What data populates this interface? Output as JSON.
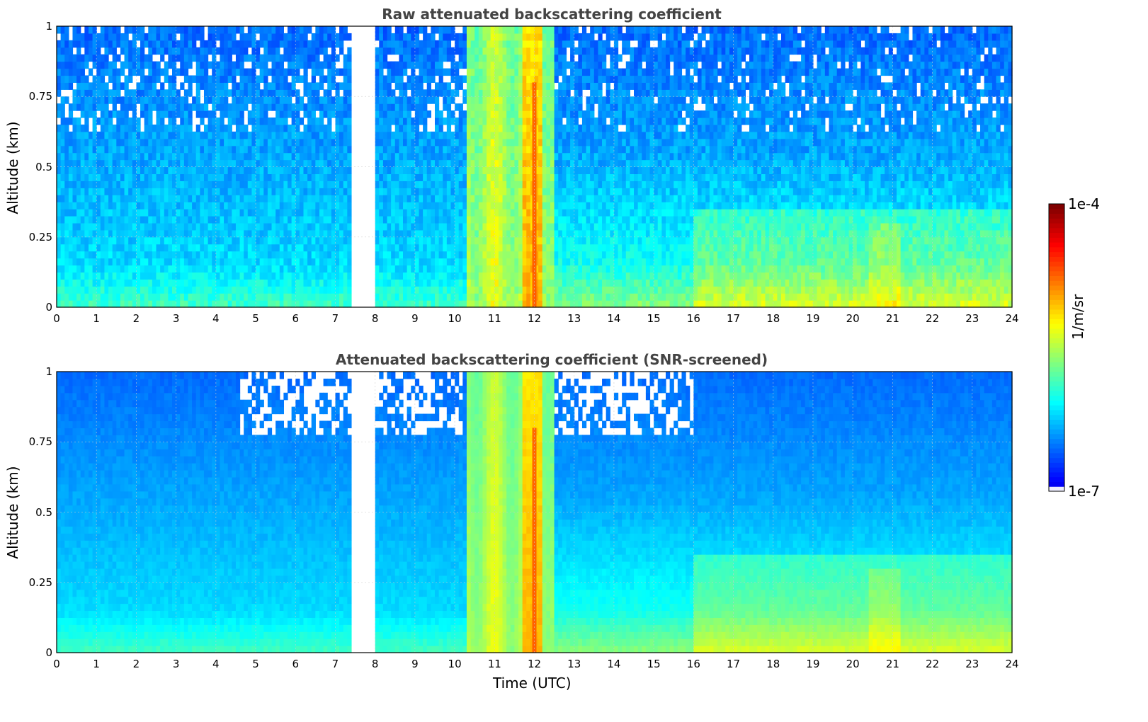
{
  "chart_data": [
    {
      "type": "heatmap",
      "title": "Raw attenuated backscattering coefficient",
      "xlabel": "",
      "ylabel": "Altitude (km)",
      "xlim": [
        0,
        24
      ],
      "ylim": [
        0,
        1
      ],
      "x_ticks": [
        "0",
        "1",
        "2",
        "3",
        "4",
        "5",
        "6",
        "7",
        "8",
        "9",
        "10",
        "11",
        "12",
        "13",
        "14",
        "15",
        "16",
        "17",
        "18",
        "19",
        "20",
        "21",
        "22",
        "23",
        "24"
      ],
      "y_ticks": [
        "0",
        "0.25",
        "0.5",
        "0.75",
        "1"
      ],
      "grid": true,
      "data_gap_hours": [
        7.4,
        8.0
      ],
      "high_signal_band_hours": [
        10.3,
        12.5
      ],
      "peak_hour": 12.0,
      "snr_screened": false
    },
    {
      "type": "heatmap",
      "title": "Attenuated backscattering coefficient (SNR-screened)",
      "xlabel": "Time (UTC)",
      "ylabel": "Altitude (km)",
      "xlim": [
        0,
        24
      ],
      "ylim": [
        0,
        1
      ],
      "x_ticks": [
        "0",
        "1",
        "2",
        "3",
        "4",
        "5",
        "6",
        "7",
        "8",
        "9",
        "10",
        "11",
        "12",
        "13",
        "14",
        "15",
        "16",
        "17",
        "18",
        "19",
        "20",
        "21",
        "22",
        "23",
        "24"
      ],
      "y_ticks": [
        "0",
        "0.25",
        "0.5",
        "0.75",
        "1"
      ],
      "grid": true,
      "data_gap_hours": [
        7.4,
        8.0
      ],
      "high_signal_band_hours": [
        10.3,
        12.5
      ],
      "peak_hour": 12.0,
      "snr_screened": true
    }
  ],
  "colorbar": {
    "max_label": "1e-4",
    "min_label": "1e-7",
    "unit_label": "1/m/sr",
    "scale": "log",
    "colormap": "jet"
  }
}
